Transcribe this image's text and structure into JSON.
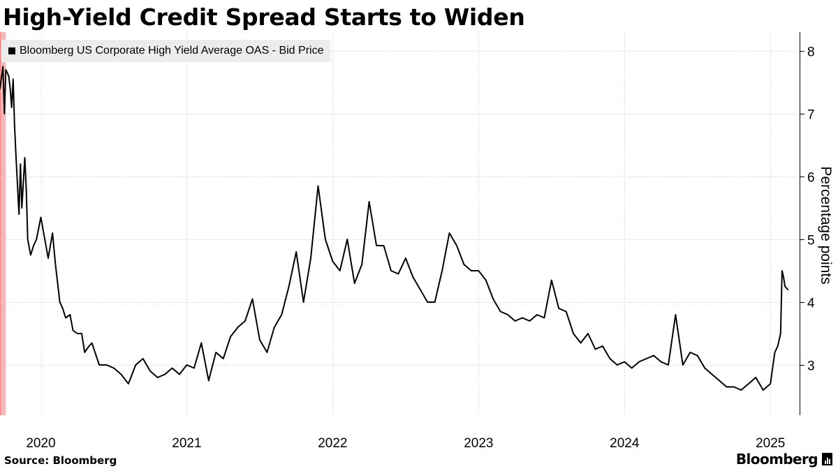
{
  "page": {
    "title": "High-Yield Credit Spread Starts to Widen",
    "source": "Source: Bloomberg",
    "brand": "Bloomberg"
  },
  "colors": {
    "line": "#000000",
    "grid": "#c8c8c8",
    "axis": "#000000",
    "recession_shade": "#f6b7b7",
    "recession_edge": "#f08080",
    "legend_bg": "#ececec"
  },
  "chart_data": {
    "type": "line",
    "title": "High-Yield Credit Spread Starts to Widen",
    "xlabel": "",
    "ylabel": "Percentage points",
    "legend": [
      "Bloomberg US Corporate High Yield Average OAS - Bid Price"
    ],
    "legend_position": "top-left",
    "xlim": [
      2019.72,
      2025.2
    ],
    "ylim": [
      2.2,
      8.3
    ],
    "y_ticks": [
      3,
      4,
      5,
      6,
      7,
      8
    ],
    "x_tick_positions": [
      2020.0,
      2021.0,
      2022.0,
      2023.0,
      2024.0,
      2025.0
    ],
    "x_tick_labels": [
      "2020",
      "2021",
      "2022",
      "2023",
      "2024",
      "2025"
    ],
    "x_label_positions": [
      2020.0,
      2021.0,
      2022.0,
      2023.0,
      2024.0,
      2025.0
    ],
    "grid": true,
    "recession_shading": {
      "start": 2019.72,
      "end": 2019.76
    },
    "series": [
      {
        "name": "Bloomberg US Corporate High Yield Average OAS - Bid Price",
        "x": [
          2019.72,
          2019.74,
          2019.75,
          2019.76,
          2019.78,
          2019.79,
          2019.8,
          2019.81,
          2019.82,
          2019.83,
          2019.85,
          2019.86,
          2019.87,
          2019.88,
          2019.89,
          2019.9,
          2019.91,
          2019.93,
          2019.95,
          2019.97,
          2020.0,
          2020.05,
          2020.08,
          2020.1,
          2020.13,
          2020.15,
          2020.17,
          2020.2,
          2020.22,
          2020.25,
          2020.28,
          2020.3,
          2020.33,
          2020.35,
          2020.4,
          2020.45,
          2020.5,
          2020.55,
          2020.6,
          2020.65,
          2020.7,
          2020.75,
          2020.8,
          2020.85,
          2020.9,
          2020.95,
          2021.0,
          2021.05,
          2021.1,
          2021.15,
          2021.2,
          2021.25,
          2021.3,
          2021.35,
          2021.4,
          2021.45,
          2021.5,
          2021.55,
          2021.6,
          2021.65,
          2021.7,
          2021.75,
          2021.8,
          2021.85,
          2021.9,
          2021.95,
          2022.0,
          2022.05,
          2022.1,
          2022.15,
          2022.2,
          2022.25,
          2022.3,
          2022.35,
          2022.4,
          2022.45,
          2022.5,
          2022.55,
          2022.6,
          2022.65,
          2022.7,
          2022.75,
          2022.8,
          2022.85,
          2022.9,
          2022.95,
          2023.0,
          2023.05,
          2023.1,
          2023.15,
          2023.2,
          2023.25,
          2023.3,
          2023.35,
          2023.4,
          2023.45,
          2023.5,
          2023.55,
          2023.6,
          2023.65,
          2023.7,
          2023.75,
          2023.8,
          2023.85,
          2023.9,
          2023.95,
          2024.0,
          2024.05,
          2024.1,
          2024.15,
          2024.2,
          2024.25,
          2024.3,
          2024.35,
          2024.4,
          2024.45,
          2024.5,
          2024.55,
          2024.6,
          2024.65,
          2024.7,
          2024.75,
          2024.8,
          2024.85,
          2024.9,
          2024.95,
          2025.0,
          2025.03,
          2025.05,
          2025.07,
          2025.08,
          2025.09,
          2025.1,
          2025.12
        ],
        "values": [
          7.4,
          7.75,
          7.0,
          7.7,
          7.6,
          7.4,
          7.1,
          7.55,
          6.8,
          6.3,
          5.4,
          6.2,
          5.5,
          5.9,
          6.3,
          5.8,
          5.0,
          4.75,
          4.9,
          5.0,
          5.35,
          4.7,
          5.1,
          4.6,
          4.0,
          3.9,
          3.75,
          3.8,
          3.55,
          3.5,
          3.5,
          3.2,
          3.3,
          3.35,
          3.0,
          3.0,
          2.95,
          2.85,
          2.7,
          3.0,
          3.1,
          2.9,
          2.8,
          2.85,
          2.95,
          2.85,
          3.0,
          2.95,
          3.35,
          2.75,
          3.2,
          3.1,
          3.45,
          3.6,
          3.7,
          4.05,
          3.4,
          3.2,
          3.6,
          3.8,
          4.25,
          4.8,
          4.0,
          4.7,
          5.85,
          5.0,
          4.65,
          4.5,
          5.0,
          4.3,
          4.6,
          5.6,
          4.9,
          4.9,
          4.5,
          4.45,
          4.7,
          4.4,
          4.2,
          4.0,
          4.0,
          4.5,
          5.1,
          4.9,
          4.6,
          4.5,
          4.5,
          4.35,
          4.05,
          3.85,
          3.8,
          3.7,
          3.75,
          3.7,
          3.8,
          3.75,
          4.35,
          3.9,
          3.85,
          3.5,
          3.35,
          3.5,
          3.25,
          3.3,
          3.1,
          3.0,
          3.05,
          2.95,
          3.05,
          3.1,
          3.15,
          3.05,
          3.0,
          3.8,
          3.0,
          3.2,
          3.15,
          2.95,
          2.85,
          2.75,
          2.65,
          2.65,
          2.6,
          2.7,
          2.8,
          2.6,
          2.7,
          3.2,
          3.3,
          3.5,
          4.5,
          4.4,
          4.25,
          4.2
        ]
      }
    ]
  }
}
